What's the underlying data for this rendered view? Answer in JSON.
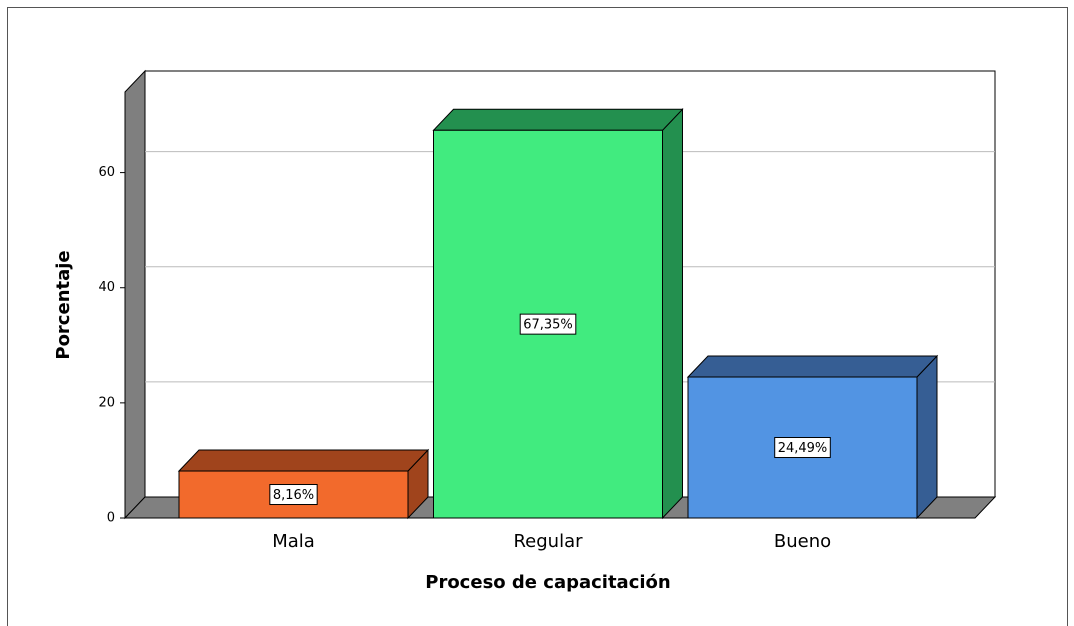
{
  "chart_data": {
    "type": "bar3d",
    "categories": [
      "Mala",
      "Regular",
      "Bueno"
    ],
    "values": [
      8.16,
      67.35,
      24.49
    ],
    "value_labels": [
      "8,16%",
      "67,35%",
      "24,49%"
    ],
    "colors": [
      "#f26a2c",
      "#41eb7f",
      "#5294e3"
    ],
    "side_colors": [
      "#a0441c",
      "#23904f",
      "#365e94"
    ],
    "x_label": "Proceso de capacitación",
    "y_label": "Porcentaje",
    "ylim": [
      0,
      74
    ],
    "yticks": [
      0,
      20,
      40,
      60
    ],
    "grid": true
  }
}
